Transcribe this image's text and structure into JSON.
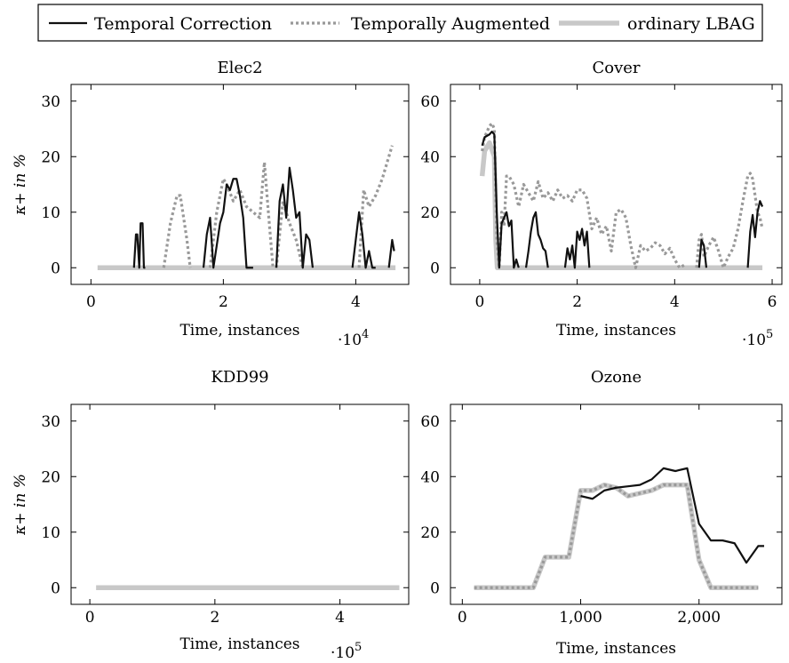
{
  "legend": {
    "entries": [
      {
        "label": "Temporal Correction",
        "color": "#111111",
        "style": "solid"
      },
      {
        "label": "Temporally Augmented",
        "color": "#999999",
        "style": "dotted"
      },
      {
        "label": "ordinary LBAG",
        "color": "#c8c8c8",
        "style": "thick"
      }
    ]
  },
  "chart_data": [
    {
      "type": "line",
      "title": "Elec2",
      "xlabel": "Time, instances",
      "ylabel": "κ+ in %",
      "x_multiplier": "·10^4",
      "xlim": [
        -0.3,
        4.8
      ],
      "ylim": [
        -3,
        33
      ],
      "xticks": [
        {
          "value": 0,
          "label": "0"
        },
        {
          "value": 2,
          "label": "2"
        },
        {
          "value": 4,
          "label": "4"
        }
      ],
      "yticks": [
        {
          "value": 0,
          "label": "0"
        },
        {
          "value": 10,
          "label": "10"
        },
        {
          "value": 20,
          "label": "20"
        },
        {
          "value": 30,
          "label": "30"
        }
      ],
      "series": [
        {
          "name": "ordinary LBAG",
          "x": [
            0.1,
            4.6
          ],
          "y": [
            0,
            0
          ]
        },
        {
          "name": "Temporally Augmented",
          "x": [
            1.1,
            1.2,
            1.3,
            1.35,
            1.45,
            1.5,
            null,
            1.8,
            1.9,
            2.0,
            2.05,
            2.15,
            2.25,
            2.35,
            2.45,
            2.55,
            2.62,
            2.68,
            2.75,
            null,
            2.8,
            2.9,
            3.0,
            3.1,
            3.2,
            null,
            4.05,
            4.12,
            4.2,
            4.3,
            4.4,
            4.5,
            4.55
          ],
          "y": [
            0,
            8,
            13,
            13,
            5,
            0,
            null,
            0,
            10,
            16,
            15,
            12,
            14,
            11,
            10,
            9,
            19,
            10,
            0,
            null,
            0,
            12,
            8,
            5,
            0,
            null,
            0,
            14,
            11,
            13,
            16,
            20,
            22
          ]
        },
        {
          "name": "Temporal Correction",
          "x": [
            0.65,
            0.68,
            0.7,
            0.73,
            0.75,
            0.78,
            0.8,
            0.82,
            null,
            1.7,
            1.75,
            1.8,
            1.85,
            1.9,
            1.95,
            2.0,
            2.05,
            2.1,
            2.15,
            2.2,
            2.25,
            2.3,
            2.35,
            2.4,
            2.45,
            null,
            2.8,
            2.85,
            2.9,
            2.95,
            3.0,
            3.05,
            3.1,
            3.15,
            3.2,
            3.25,
            3.3,
            3.35,
            null,
            3.95,
            4.0,
            4.05,
            4.1,
            4.15,
            4.2,
            4.25,
            4.3,
            null,
            4.5,
            4.55,
            4.58
          ],
          "y": [
            0,
            6,
            6,
            0,
            8,
            8,
            0,
            0,
            null,
            0,
            6,
            9,
            0,
            4,
            8,
            10,
            15,
            14,
            16,
            16,
            13,
            9,
            0,
            0,
            0,
            null,
            0,
            12,
            15,
            9,
            18,
            14,
            9,
            10,
            0,
            6,
            5,
            0,
            null,
            0,
            5,
            10,
            6,
            0,
            3,
            0,
            0,
            null,
            0,
            5,
            3
          ]
        }
      ]
    },
    {
      "type": "line",
      "title": "Cover",
      "xlabel": "Time, instances",
      "ylabel": "",
      "x_multiplier": "·10^5",
      "xlim": [
        -0.6,
        6.2
      ],
      "ylim": [
        -6,
        66
      ],
      "xticks": [
        {
          "value": 0,
          "label": "0"
        },
        {
          "value": 2,
          "label": "2"
        },
        {
          "value": 4,
          "label": "4"
        },
        {
          "value": 6,
          "label": "6"
        }
      ],
      "yticks": [
        {
          "value": 0,
          "label": "0"
        },
        {
          "value": 20,
          "label": "20"
        },
        {
          "value": 40,
          "label": "40"
        },
        {
          "value": 60,
          "label": "60"
        }
      ],
      "series": [
        {
          "name": "ordinary LBAG",
          "x": [
            0.05,
            0.1,
            0.2,
            0.3,
            0.33,
            0.36,
            5.8
          ],
          "y": [
            33,
            42,
            45,
            40,
            10,
            0,
            0
          ]
        },
        {
          "name": "Temporally Augmented",
          "x": [
            0.05,
            0.1,
            0.2,
            0.25,
            0.3,
            0.35,
            0.4,
            0.45,
            0.5,
            0.55,
            0.6,
            0.7,
            0.8,
            0.9,
            1.0,
            1.1,
            1.2,
            1.3,
            1.4,
            1.5,
            1.6,
            1.7,
            1.8,
            1.9,
            2.0,
            2.1,
            2.2,
            2.3,
            2.4,
            2.5,
            2.6,
            2.7,
            2.8,
            2.9,
            3.0,
            3.1,
            3.2,
            3.3,
            3.4,
            3.5,
            3.6,
            3.7,
            3.8,
            3.9,
            4.0,
            4.1,
            4.2,
            null,
            4.45,
            4.5,
            4.55,
            4.6,
            4.7,
            4.8,
            4.9,
            5.0,
            5.1,
            5.2,
            5.3,
            5.4,
            5.5,
            5.55,
            5.6,
            5.65,
            5.7,
            5.75,
            5.8
          ],
          "y": [
            42,
            47,
            51,
            52,
            50,
            10,
            0,
            20,
            15,
            33,
            33,
            30,
            22,
            30,
            27,
            24,
            31,
            25,
            27,
            24,
            28,
            25,
            26,
            24,
            28,
            28,
            25,
            14,
            18,
            12,
            15,
            6,
            20,
            21,
            18,
            8,
            0,
            8,
            6,
            7,
            9,
            8,
            5,
            7,
            3,
            0,
            1,
            null,
            0,
            10,
            12,
            4,
            8,
            11,
            6,
            0,
            4,
            7,
            14,
            24,
            33,
            34,
            32,
            26,
            20,
            18,
            14
          ]
        },
        {
          "name": "Temporal Correction",
          "x": [
            0.05,
            0.1,
            0.2,
            0.25,
            0.3,
            0.35,
            0.4,
            0.45,
            0.5,
            0.55,
            0.6,
            0.65,
            0.7,
            0.75,
            0.8,
            null,
            0.95,
            1.0,
            1.05,
            1.1,
            1.15,
            1.2,
            1.25,
            1.3,
            1.35,
            1.4,
            null,
            1.75,
            1.8,
            1.85,
            1.9,
            1.95,
            2.0,
            2.05,
            2.1,
            2.15,
            2.2,
            2.25,
            null,
            4.5,
            4.55,
            4.6,
            4.65,
            null,
            5.5,
            5.55,
            5.6,
            5.65,
            5.7,
            5.75,
            5.8
          ],
          "y": [
            44,
            47,
            48,
            49,
            48,
            20,
            0,
            16,
            18,
            20,
            15,
            17,
            0,
            3,
            0,
            null,
            0,
            6,
            13,
            18,
            20,
            12,
            10,
            7,
            6,
            0,
            null,
            0,
            7,
            3,
            8,
            0,
            13,
            10,
            14,
            8,
            13,
            0,
            null,
            0,
            10,
            8,
            0,
            null,
            0,
            13,
            19,
            11,
            20,
            24,
            22
          ]
        }
      ]
    },
    {
      "type": "line",
      "title": "KDD99",
      "xlabel": "Time, instances",
      "ylabel": "κ+ in %",
      "x_multiplier": "·10^5",
      "xlim": [
        -0.3,
        5.1
      ],
      "ylim": [
        -3,
        33
      ],
      "xticks": [
        {
          "value": 0,
          "label": "0"
        },
        {
          "value": 2,
          "label": "2"
        },
        {
          "value": 4,
          "label": "4"
        }
      ],
      "yticks": [
        {
          "value": 0,
          "label": "0"
        },
        {
          "value": 10,
          "label": "10"
        },
        {
          "value": 20,
          "label": "20"
        },
        {
          "value": 30,
          "label": "30"
        }
      ],
      "series": [
        {
          "name": "ordinary LBAG",
          "x": [
            0.1,
            4.95
          ],
          "y": [
            0,
            0
          ]
        }
      ]
    },
    {
      "type": "line",
      "title": "Ozone",
      "xlabel": "Time, instances",
      "ylabel": "",
      "x_multiplier": "",
      "xlim": [
        -100,
        2700
      ],
      "ylim": [
        -6,
        66
      ],
      "xticks": [
        {
          "value": 0,
          "label": "0"
        },
        {
          "value": 1000,
          "label": "1,000"
        },
        {
          "value": 2000,
          "label": "2,000"
        }
      ],
      "yticks": [
        {
          "value": 0,
          "label": "0"
        },
        {
          "value": 20,
          "label": "20"
        },
        {
          "value": 40,
          "label": "40"
        },
        {
          "value": 60,
          "label": "60"
        }
      ],
      "series": [
        {
          "name": "ordinary LBAG",
          "x": [
            100,
            200,
            300,
            400,
            500,
            600,
            700,
            800,
            900,
            1000,
            1100,
            1200,
            1300,
            1400,
            1500,
            1600,
            1700,
            1800,
            1900,
            2000,
            2100,
            2200,
            2300,
            2400,
            2500
          ],
          "y": [
            0,
            0,
            0,
            0,
            0,
            0,
            11,
            11,
            11,
            35,
            35,
            37,
            36,
            33,
            34,
            35,
            37,
            37,
            37,
            10,
            0,
            0,
            0,
            0,
            0
          ]
        },
        {
          "name": "Temporally Augmented",
          "x": [
            100,
            200,
            300,
            400,
            500,
            600,
            700,
            800,
            900,
            1000,
            1100,
            1200,
            1300,
            1400,
            1500,
            1600,
            1700,
            1800,
            1900,
            2000,
            2100,
            2200,
            2300,
            2400,
            2500
          ],
          "y": [
            0,
            0,
            0,
            0,
            0,
            0,
            11,
            11,
            11,
            35,
            35,
            37,
            36,
            33,
            34,
            35,
            37,
            37,
            37,
            10,
            0,
            0,
            0,
            0,
            0
          ]
        },
        {
          "name": "Temporal Correction",
          "x": [
            1000,
            1100,
            1200,
            1300,
            1400,
            1500,
            1600,
            1700,
            1800,
            1900,
            2000,
            2100,
            2200,
            2300,
            2400,
            2500,
            2550
          ],
          "y": [
            33,
            32,
            35,
            36,
            36.5,
            37,
            39,
            43,
            42,
            43,
            23,
            17,
            17,
            16,
            9,
            15,
            15
          ]
        }
      ]
    }
  ]
}
